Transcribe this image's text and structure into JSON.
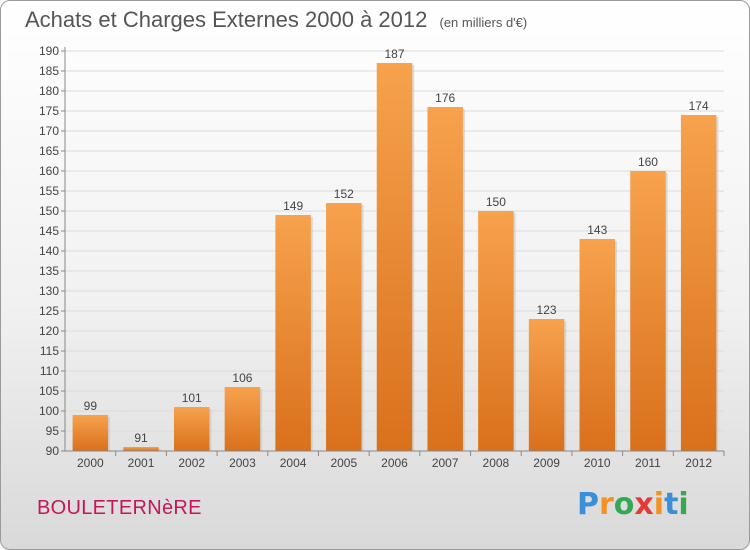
{
  "header": {
    "title": "Achats et Charges Externes 2000 à 2012",
    "unit": "(en milliers d'€)"
  },
  "footer": {
    "commune": "BOULETERNèRE",
    "logo_letters": [
      "P",
      "r",
      "o",
      "x",
      "i",
      "t",
      "i"
    ],
    "logo_colors": [
      "#3a8fd6",
      "#f29222",
      "#36a852",
      "#e53935",
      "#f29222",
      "#3a8fd6",
      "#36a852"
    ]
  },
  "chart_data": {
    "type": "bar",
    "title": "Achats et Charges Externes 2000 à 2012",
    "xlabel": "",
    "ylabel": "",
    "categories": [
      "2000",
      "2001",
      "2002",
      "2003",
      "2004",
      "2005",
      "2006",
      "2007",
      "2008",
      "2009",
      "2010",
      "2011",
      "2012"
    ],
    "values": [
      99,
      91,
      101,
      106,
      149,
      152,
      187,
      176,
      150,
      123,
      143,
      160,
      174
    ],
    "value_labels": [
      "99",
      "91",
      "101",
      "106",
      "149",
      "152",
      "187",
      "176",
      "150",
      "123",
      "143",
      "160",
      "174"
    ],
    "ylim": [
      90,
      190
    ],
    "yticks": [
      "90",
      "95",
      "100",
      "105",
      "110",
      "115",
      "120",
      "125",
      "130",
      "135",
      "140",
      "145",
      "150",
      "155",
      "160",
      "165",
      "170",
      "175",
      "180",
      "185",
      "190"
    ],
    "grid": true,
    "bar_color_light": "#f7a24d",
    "bar_color_dark": "#d9701c"
  }
}
